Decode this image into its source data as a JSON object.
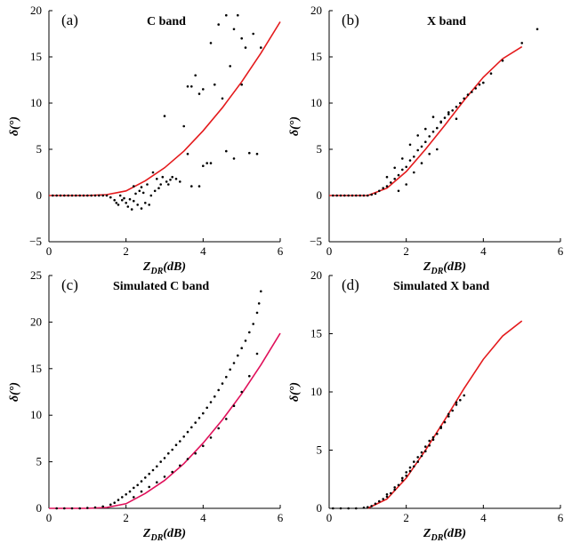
{
  "chart_data": [
    {
      "id": "a",
      "type": "scatter",
      "panel_label": "(a)",
      "title": "C band",
      "xlabel_main": "Z",
      "xlabel_sub": "DR",
      "xlabel_suffix": "(dB)",
      "ylabel": "δ(°)",
      "xlim": [
        0,
        6
      ],
      "ylim": [
        -5,
        20
      ],
      "xticks": [
        0,
        2,
        4,
        6
      ],
      "yticks": [
        -5,
        0,
        5,
        10,
        15,
        20
      ],
      "colors": {
        "points": "#000000",
        "curve": "#e41a1c"
      },
      "curve": {
        "name": "fit",
        "x": [
          0,
          1,
          1.5,
          2,
          2.5,
          3,
          3.5,
          4,
          4.5,
          5,
          5.5,
          6
        ],
        "y": [
          0,
          0,
          0.1,
          0.5,
          1.6,
          3.0,
          4.8,
          7.0,
          9.5,
          12.3,
          15.4,
          18.8
        ]
      },
      "points": {
        "x": [
          0.1,
          0.2,
          0.3,
          0.4,
          0.5,
          0.6,
          0.7,
          0.8,
          0.9,
          1.0,
          1.1,
          1.2,
          1.3,
          1.4,
          1.5,
          1.6,
          1.7,
          1.75,
          1.8,
          1.85,
          1.9,
          1.95,
          2.0,
          2.05,
          2.1,
          2.15,
          2.2,
          2.25,
          2.3,
          2.35,
          2.4,
          2.45,
          2.5,
          2.55,
          2.6,
          2.65,
          2.7,
          2.75,
          2.8,
          2.85,
          2.9,
          2.95,
          3.0,
          3.05,
          3.1,
          3.15,
          3.2,
          3.3,
          3.4,
          3.5,
          3.6,
          3.7,
          3.8,
          3.9,
          4.0,
          4.0,
          4.1,
          4.2,
          4.3,
          4.4,
          4.5,
          4.6,
          4.7,
          4.8,
          4.9,
          5.0,
          5.1,
          5.2,
          5.3,
          5.5,
          3.7,
          3.9,
          4.6,
          4.8,
          5.0,
          5.4,
          3.6,
          4.2,
          2.4,
          2.2
        ],
        "y": [
          0,
          0,
          0,
          0,
          0,
          0,
          0,
          0,
          0,
          0,
          0,
          0,
          0,
          0,
          0,
          -0.2,
          -0.5,
          -0.8,
          -1.0,
          0,
          -0.5,
          -0.3,
          -0.8,
          -1.2,
          -0.4,
          -1.5,
          -0.6,
          0.2,
          -1.0,
          0.5,
          -1.4,
          0.3,
          -0.8,
          1.2,
          -1.0,
          0.0,
          2.5,
          0.5,
          1.8,
          0.8,
          1.2,
          2.0,
          8.6,
          1.5,
          1.2,
          1.7,
          2.0,
          1.8,
          1.5,
          7.5,
          11.8,
          1.0,
          13.0,
          11.0,
          3.2,
          11.5,
          3.5,
          16.5,
          12.0,
          18.5,
          10.5,
          19.5,
          14.0,
          18.0,
          19.5,
          17.0,
          16.0,
          4.6,
          17.5,
          16.0,
          11.8,
          1.0,
          4.8,
          4.0,
          12.0,
          4.5,
          4.5,
          3.5,
          0.9,
          1.0
        ]
      }
    },
    {
      "id": "b",
      "type": "scatter",
      "panel_label": "(b)",
      "title": "X band",
      "xlabel_main": "Z",
      "xlabel_sub": "DR",
      "xlabel_suffix": "(dB)",
      "ylabel": "δ(°)",
      "xlim": [
        0,
        6
      ],
      "ylim": [
        -5,
        20
      ],
      "xticks": [
        0,
        2,
        4,
        6
      ],
      "yticks": [
        -5,
        0,
        5,
        10,
        15,
        20
      ],
      "colors": {
        "points": "#000000",
        "curve": "#e41a1c"
      },
      "curve": {
        "name": "fit",
        "x": [
          0,
          1,
          1.5,
          2,
          2.5,
          3,
          3.5,
          4,
          4.5,
          5
        ],
        "y": [
          0,
          0,
          0.8,
          2.6,
          5.0,
          7.6,
          10.3,
          12.8,
          14.8,
          16.1
        ]
      },
      "points": {
        "x": [
          0.1,
          0.2,
          0.3,
          0.4,
          0.5,
          0.6,
          0.7,
          0.8,
          0.9,
          1.0,
          1.1,
          1.2,
          1.3,
          1.4,
          1.5,
          1.6,
          1.7,
          1.8,
          1.9,
          2.0,
          2.1,
          2.2,
          2.3,
          2.4,
          2.5,
          2.6,
          2.7,
          2.8,
          2.9,
          3.0,
          3.1,
          3.2,
          3.3,
          3.4,
          3.5,
          3.6,
          3.7,
          3.8,
          3.9,
          4.0,
          4.2,
          4.5,
          5.0,
          5.4,
          1.5,
          1.7,
          1.9,
          2.1,
          2.3,
          2.5,
          2.7,
          2.9,
          3.1,
          3.3,
          2.2,
          2.4,
          2.6,
          2.8,
          1.8,
          2.0
        ],
        "y": [
          0,
          0,
          0,
          0,
          0,
          0,
          0,
          0,
          0,
          0,
          0.1,
          0.2,
          0.5,
          0.8,
          1.0,
          1.4,
          1.8,
          2.2,
          2.8,
          3.1,
          3.8,
          4.2,
          4.9,
          5.3,
          5.8,
          6.4,
          6.9,
          7.3,
          7.9,
          8.4,
          8.8,
          9.2,
          9.6,
          10.0,
          10.5,
          10.9,
          11.2,
          11.6,
          12.0,
          12.2,
          13.2,
          14.6,
          16.5,
          18.0,
          2.0,
          3.0,
          4.0,
          5.5,
          6.5,
          7.2,
          8.5,
          8.0,
          9.0,
          8.3,
          2.5,
          3.5,
          4.5,
          5.0,
          0.5,
          1.2
        ]
      }
    },
    {
      "id": "c",
      "type": "scatter",
      "panel_label": "(c)",
      "title": "Simulated C band",
      "xlabel_main": "Z",
      "xlabel_sub": "DR",
      "xlabel_suffix": "(dB)",
      "ylabel": "δ(°)",
      "xlim": [
        0,
        6
      ],
      "ylim": [
        0,
        25
      ],
      "xticks": [
        0,
        2,
        4,
        6
      ],
      "yticks": [
        0,
        5,
        10,
        15,
        20,
        25
      ],
      "colors": {
        "points": "#000000",
        "curve": "#e0105a"
      },
      "curve": {
        "name": "fit",
        "x": [
          0,
          1,
          1.5,
          2,
          2.5,
          3,
          3.5,
          4,
          4.5,
          5,
          5.5,
          6
        ],
        "y": [
          0,
          0,
          0.1,
          0.5,
          1.6,
          3.0,
          4.8,
          7.0,
          9.5,
          12.3,
          15.4,
          18.8
        ]
      },
      "points": {
        "x": [
          0.2,
          0.4,
          0.6,
          0.8,
          1.0,
          1.2,
          1.4,
          1.6,
          1.7,
          1.8,
          1.9,
          2.0,
          2.1,
          2.2,
          2.3,
          2.4,
          2.5,
          2.6,
          2.7,
          2.8,
          2.9,
          3.0,
          3.1,
          3.2,
          3.3,
          3.4,
          3.5,
          3.6,
          3.7,
          3.8,
          3.9,
          4.0,
          4.1,
          4.2,
          4.3,
          4.4,
          4.5,
          4.6,
          4.7,
          4.8,
          4.9,
          5.0,
          5.1,
          5.2,
          5.3,
          5.4,
          5.45,
          5.5,
          2.2,
          2.4,
          2.6,
          2.8,
          3.0,
          3.2,
          3.4,
          3.6,
          3.8,
          4.0,
          4.2,
          4.4,
          4.6,
          4.8,
          5.0,
          5.2,
          5.4
        ],
        "y": [
          0,
          0,
          0,
          0,
          0.05,
          0.1,
          0.2,
          0.4,
          0.6,
          0.9,
          1.2,
          1.5,
          1.8,
          2.2,
          2.5,
          2.9,
          3.3,
          3.7,
          4.1,
          4.5,
          5.0,
          5.4,
          5.9,
          6.3,
          6.8,
          7.2,
          7.7,
          8.2,
          8.7,
          9.2,
          9.7,
          10.2,
          10.8,
          11.4,
          12.0,
          12.7,
          13.4,
          14.1,
          14.9,
          15.6,
          16.4,
          17.2,
          18.0,
          18.9,
          19.8,
          21.0,
          22.0,
          23.3,
          1.2,
          1.8,
          2.3,
          2.8,
          3.4,
          3.9,
          4.6,
          5.3,
          5.9,
          6.7,
          7.6,
          8.6,
          9.6,
          11.0,
          12.5,
          14.2,
          16.6
        ]
      }
    },
    {
      "id": "d",
      "type": "scatter",
      "panel_label": "(d)",
      "title": "Simulated X band",
      "xlabel_main": "Z",
      "xlabel_sub": "DR",
      "xlabel_suffix": "(dB)",
      "ylabel": "δ(°)",
      "xlim": [
        0,
        6
      ],
      "ylim": [
        0,
        20
      ],
      "xticks": [
        0,
        2,
        4,
        6
      ],
      "yticks": [
        0,
        5,
        10,
        15,
        20
      ],
      "colors": {
        "points": "#000000",
        "curve": "#e41a1c"
      },
      "curve": {
        "name": "fit",
        "x": [
          1,
          1.5,
          2,
          2.5,
          3,
          3.5,
          4,
          4.5,
          5
        ],
        "y": [
          0,
          0.8,
          2.6,
          5.0,
          7.6,
          10.3,
          12.8,
          14.8,
          16.1
        ]
      },
      "points": {
        "x": [
          0.1,
          0.3,
          0.5,
          0.7,
          0.9,
          1.0,
          1.1,
          1.2,
          1.3,
          1.4,
          1.5,
          1.6,
          1.7,
          1.8,
          1.9,
          2.0,
          2.1,
          2.2,
          2.3,
          2.4,
          2.5,
          2.6,
          2.7,
          2.8,
          2.9,
          3.0,
          3.1,
          3.2,
          3.3,
          3.4,
          3.5,
          1.5,
          1.7,
          1.9,
          2.1,
          2.3,
          2.5,
          2.7,
          2.9,
          3.1,
          3.3,
          2.0,
          2.2,
          2.4,
          2.6
        ],
        "y": [
          0,
          0,
          0,
          0,
          0.05,
          0.1,
          0.2,
          0.4,
          0.6,
          0.8,
          1.0,
          1.3,
          1.6,
          2.0,
          2.4,
          2.8,
          3.2,
          3.6,
          4.0,
          4.5,
          4.9,
          5.4,
          5.9,
          6.4,
          6.9,
          7.4,
          7.9,
          8.4,
          8.9,
          9.3,
          9.7,
          1.2,
          1.8,
          2.6,
          3.5,
          4.4,
          5.3,
          6.1,
          7.0,
          8.1,
          9.1,
          3.1,
          4.0,
          4.8,
          5.8
        ]
      }
    }
  ]
}
